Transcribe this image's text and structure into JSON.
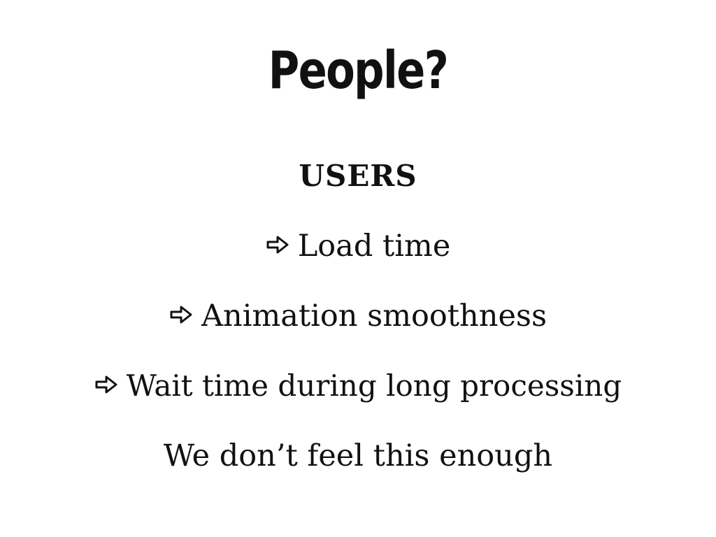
{
  "slide": {
    "title": "People?",
    "subtitle": "USERS",
    "bullets": [
      {
        "text": "Load time",
        "icon": "right-arrow-icon"
      },
      {
        "text": "Animation smoothness",
        "icon": "right-arrow-icon"
      },
      {
        "text": "Wait time during long processing",
        "icon": "right-arrow-icon"
      }
    ],
    "closing": "We don’t feel this enough"
  },
  "colors": {
    "background": "#ffffff",
    "text": "#111111"
  }
}
